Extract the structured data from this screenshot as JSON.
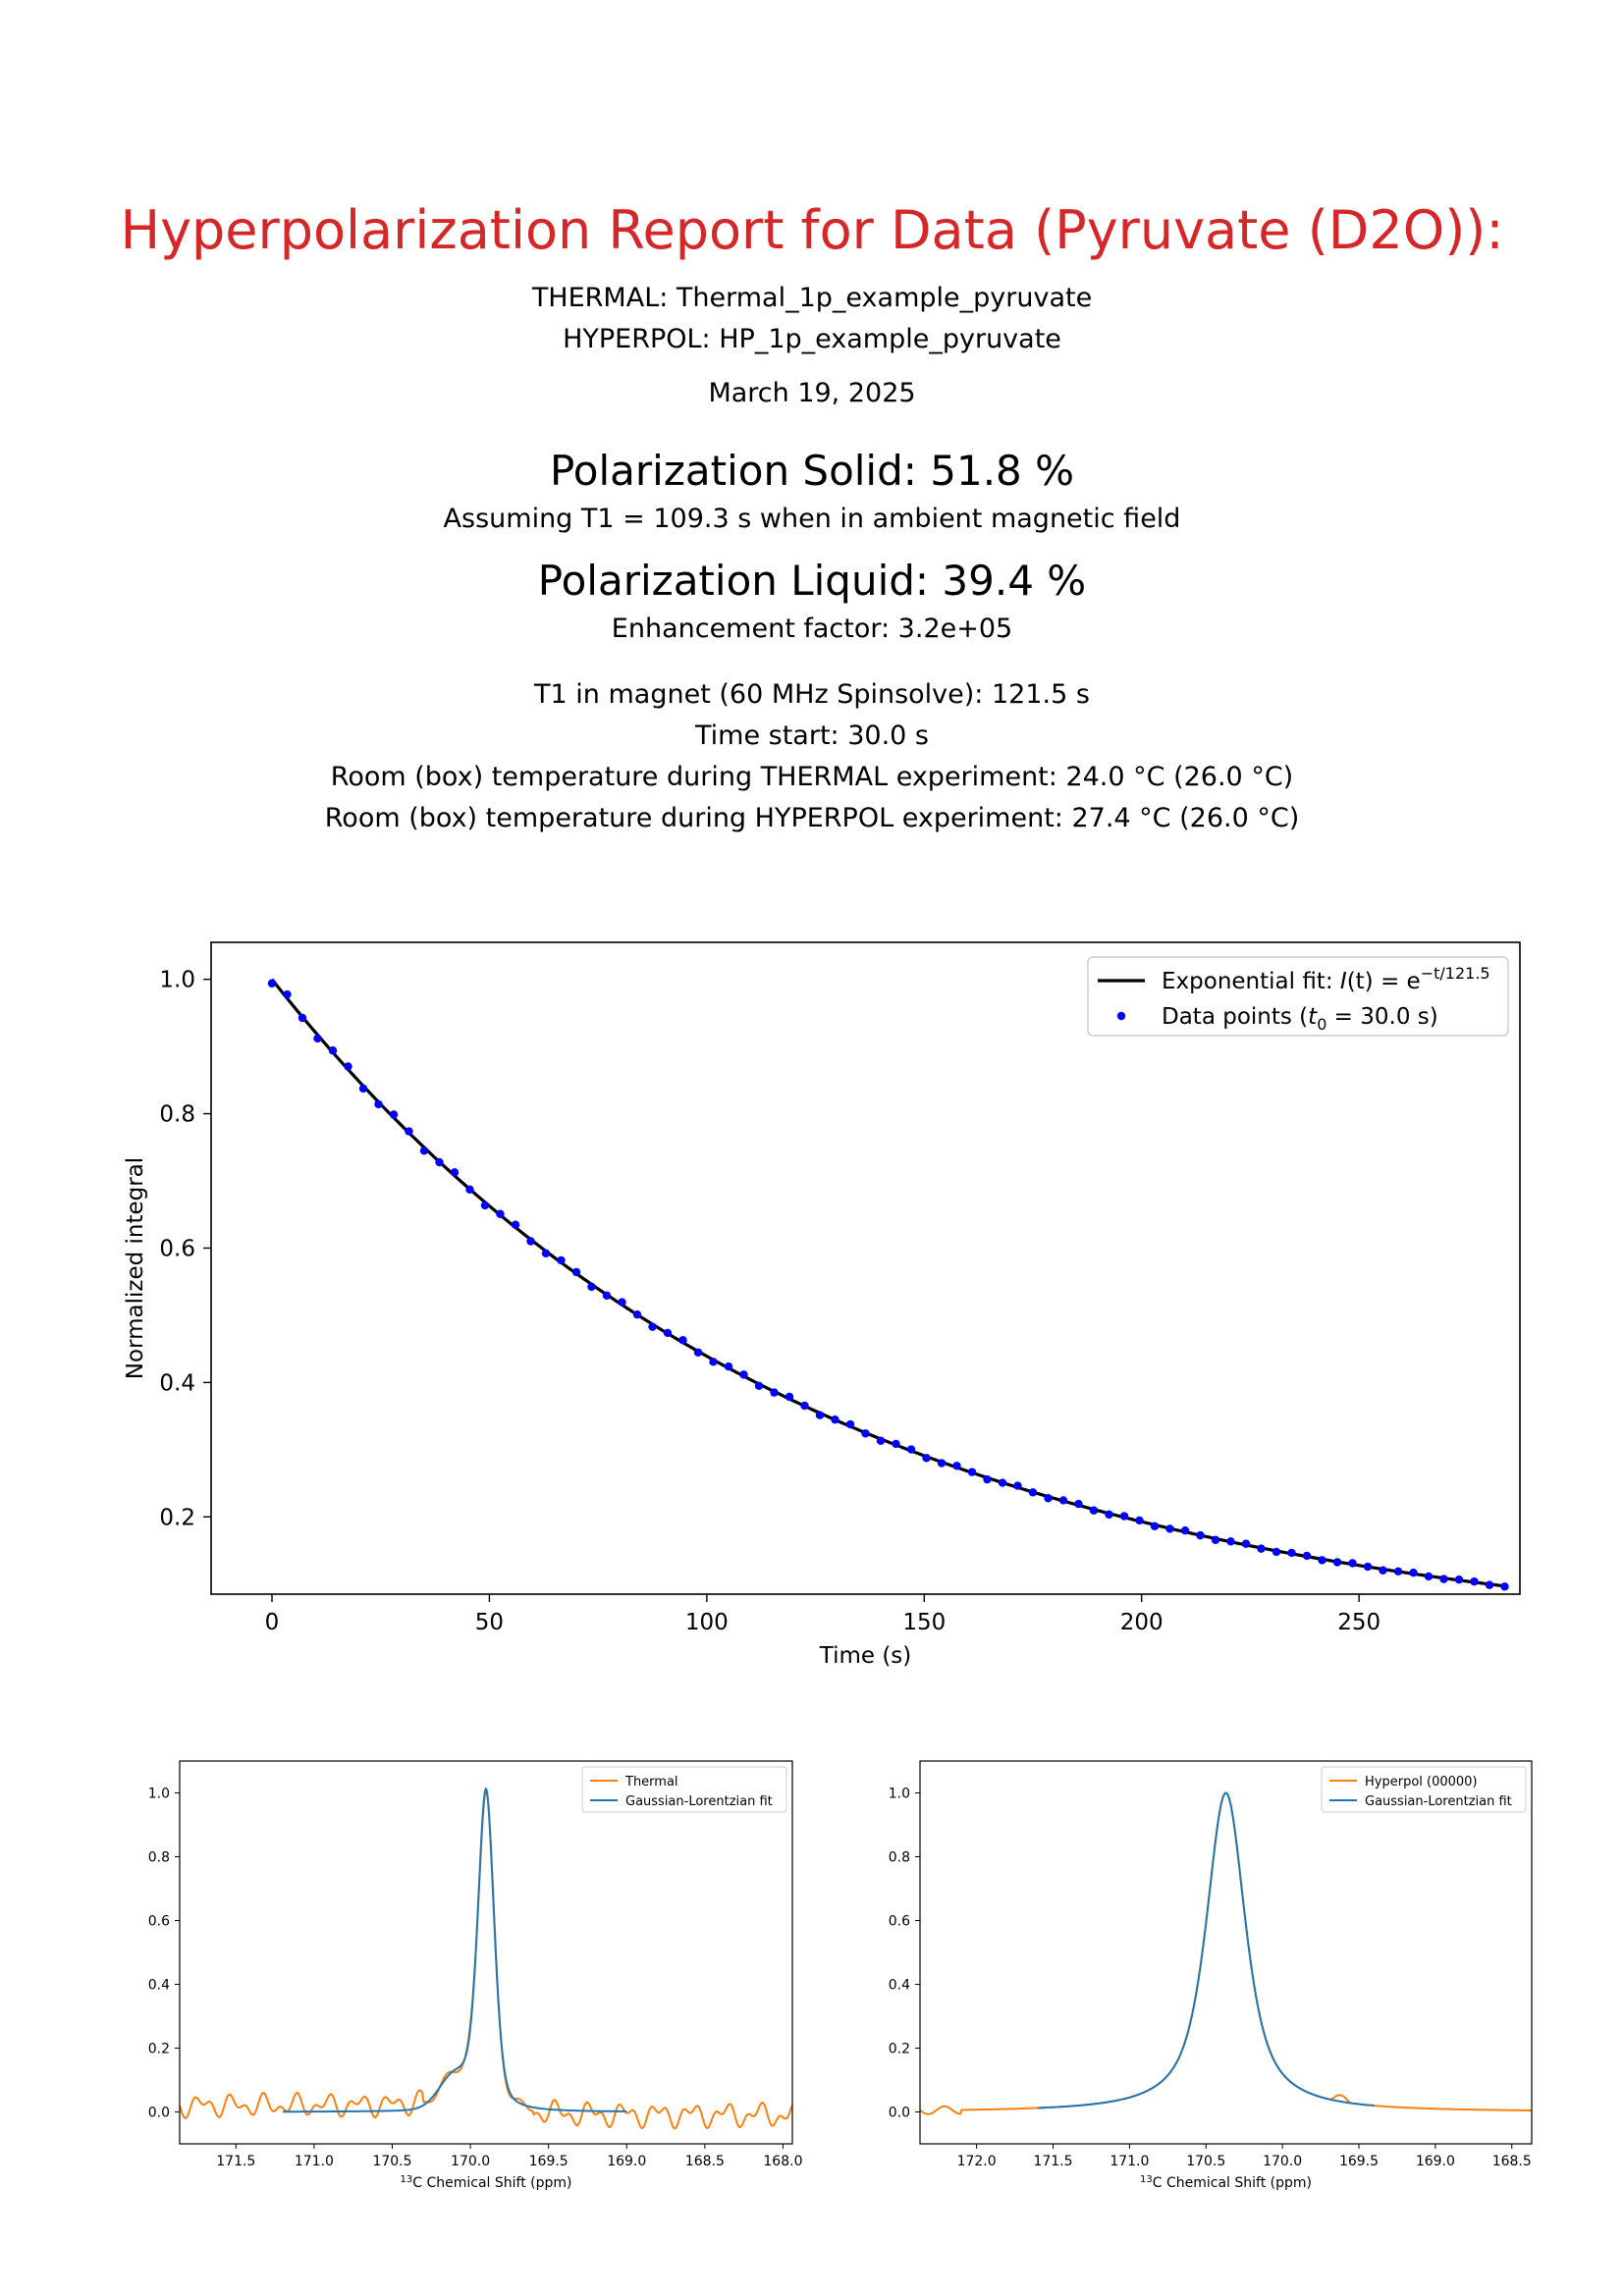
{
  "report": {
    "title": "Hyperpolarization Report for Data (Pyruvate (D2O)):",
    "thermal_line": "THERMAL:  Thermal_1p_example_pyruvate",
    "hyperpol_line": "HYPERPOL:  HP_1p_example_pyruvate",
    "date": "March 19, 2025",
    "polarization_solid": "Polarization Solid: 51.8 %",
    "t1_assumption": "Assuming T1 = 109.3 s when in ambient magnetic field",
    "polarization_liquid": "Polarization Liquid: 39.4 %",
    "enhancement": "Enhancement factor: 3.2e+05",
    "t1_magnet": "T1 in magnet (60 MHz Spinsolve): 121.5 s",
    "time_start": "Time start: 30.0 s",
    "temp_thermal": "Room (box) temperature during THERMAL experiment: 24.0 °C (26.0 °C)",
    "temp_hyperpol": "Room (box) temperature during HYPERPOL experiment: 27.4 °C (26.0 °C)"
  },
  "chart_data": [
    {
      "type": "scatter",
      "xlabel": "Time (s)",
      "ylabel": "Normalized integral",
      "xlim": [
        -14,
        287
      ],
      "ylim": [
        0.085,
        1.055
      ],
      "xticks": [
        0,
        50,
        100,
        150,
        200,
        250
      ],
      "yticks": [
        0.2,
        0.4,
        0.6,
        0.8,
        1.0
      ],
      "legend_position": "top-right",
      "fit": {
        "name": "Exponential fit: I(t) = e^{-t/121.5}",
        "T1": 121.5,
        "color": "#000000"
      },
      "points": {
        "name": "Data points (t0 = 30.0 s)",
        "color": "#0000ff",
        "dt": 3.5,
        "count": 82
      }
    },
    {
      "type": "line",
      "xlabel": "13C Chemical Shift (ppm)",
      "xlim": [
        171.86,
        167.94
      ],
      "ylim": [
        -0.1,
        1.1
      ],
      "xticks": [
        171.5,
        171.0,
        170.5,
        170.0,
        169.5,
        169.0,
        168.5,
        168.0
      ],
      "yticks": [
        0.0,
        0.2,
        0.4,
        0.6,
        0.8,
        1.0
      ],
      "legend_position": "top-right",
      "series": [
        {
          "name": "Thermal",
          "color": "#ff7f0e"
        },
        {
          "name": "Gaussian-Lorentzian fit",
          "color": "#1f77b4"
        }
      ],
      "peak_ppm": 169.9
    },
    {
      "type": "line",
      "xlabel": "13C Chemical Shift (ppm)",
      "xlim": [
        172.37,
        168.37
      ],
      "ylim": [
        -0.1,
        1.1
      ],
      "xticks": [
        172.0,
        171.5,
        171.0,
        170.5,
        170.0,
        169.5,
        169.0,
        168.5
      ],
      "yticks": [
        0.0,
        0.2,
        0.4,
        0.6,
        0.8,
        1.0
      ],
      "legend_position": "top-right",
      "series": [
        {
          "name": "Hyperpol (00000)",
          "color": "#ff7f0e"
        },
        {
          "name": "Gaussian-Lorentzian fit",
          "color": "#1f77b4"
        }
      ],
      "peak_ppm": 170.37
    }
  ]
}
